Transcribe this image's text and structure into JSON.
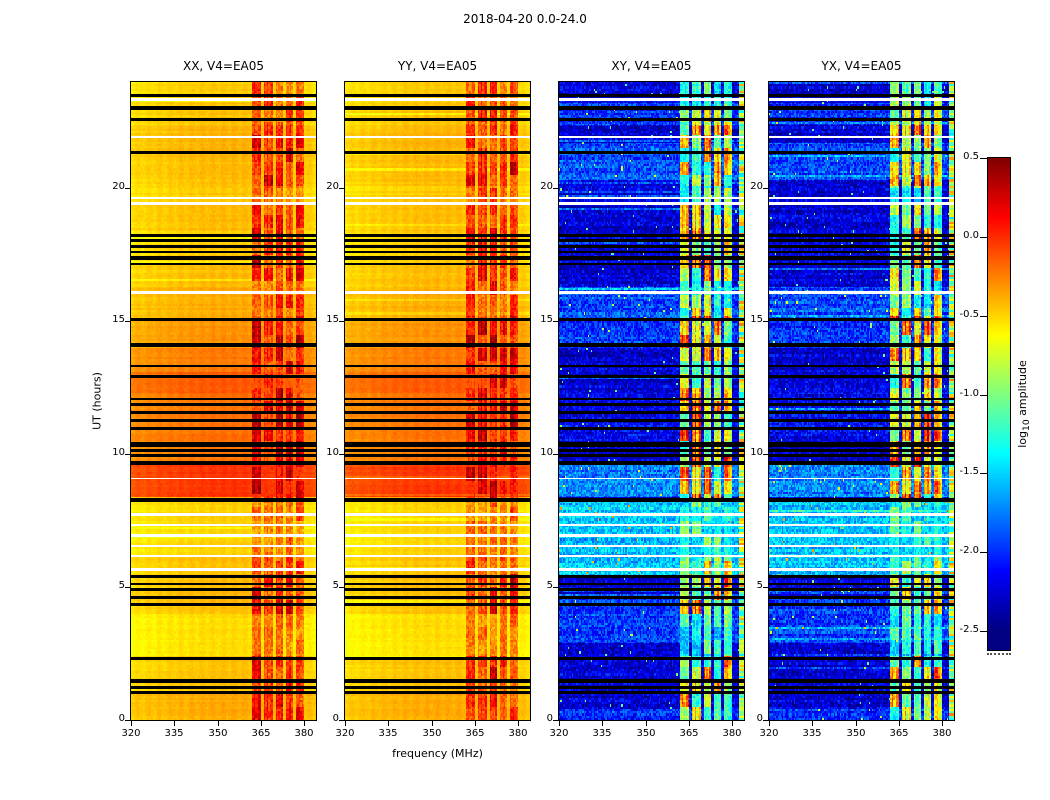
{
  "chart_data": {
    "type": "heatmap",
    "title": "2018-04-20 0.0-24.0",
    "colormap": "jet",
    "panels": [
      {
        "id": "xx",
        "title": "XX, V4=EA05",
        "kind": "auto",
        "seed": 11
      },
      {
        "id": "yy",
        "title": "YY, V4=EA05",
        "kind": "auto",
        "seed": 12
      },
      {
        "id": "xy",
        "title": "XY, V4=EA05",
        "kind": "cross",
        "seed": 23
      },
      {
        "id": "yx",
        "title": "YX, V4=EA05",
        "kind": "cross",
        "seed": 24
      }
    ],
    "x": {
      "label": "frequency (MHz)",
      "min": 320,
      "max": 384,
      "tick_values": [
        320,
        335,
        350,
        365,
        380
      ],
      "tick_labels": [
        "320",
        "335",
        "350",
        "365",
        "380"
      ]
    },
    "y": {
      "label": "UT (hours)",
      "min": 0,
      "max": 24,
      "tick_values": [
        0,
        5,
        10,
        15,
        20
      ],
      "tick_labels": [
        "0",
        "5",
        "10",
        "15",
        "20"
      ]
    },
    "colorbar": {
      "label_parts": {
        "prefix": "log",
        "sub": "10",
        "suffix": " amplitude"
      },
      "min": -2.5,
      "max": 0.5,
      "tick_values": [
        0.5,
        0.0,
        -0.5,
        -1.0,
        -1.5,
        -2.0,
        -2.5
      ],
      "tick_labels": [
        "0.5",
        "0.0",
        "-0.5",
        "-1.0",
        "-1.5",
        "-2.0",
        "-2.5"
      ]
    },
    "rfi_band_mhz": [
      361.5,
      380.5
    ],
    "rfi_blocks_mhz": [
      [
        361.8,
        365.0
      ],
      [
        366.0,
        369.0
      ],
      [
        370.0,
        372.5
      ],
      [
        373.5,
        376.0
      ],
      [
        377.0,
        379.8
      ]
    ],
    "auto_background_level": -0.62,
    "cross_background_level": -2.25,
    "flagged_rows_hours": [
      [
        0.98,
        1.08
      ],
      [
        1.18,
        1.28
      ],
      [
        1.38,
        1.55
      ],
      [
        2.25,
        2.38
      ],
      [
        4.28,
        4.4
      ],
      [
        4.55,
        4.66
      ],
      [
        4.84,
        4.96
      ],
      [
        5.06,
        5.16
      ],
      [
        5.34,
        5.44
      ],
      [
        8.2,
        8.36
      ],
      [
        9.6,
        9.76
      ],
      [
        9.9,
        10.02
      ],
      [
        10.08,
        10.18
      ],
      [
        10.28,
        10.46
      ],
      [
        10.9,
        11.02
      ],
      [
        11.2,
        11.32
      ],
      [
        11.5,
        11.62
      ],
      [
        11.8,
        11.92
      ],
      [
        12.02,
        12.12
      ],
      [
        12.85,
        12.97
      ],
      [
        13.28,
        13.37
      ],
      [
        14.05,
        14.17
      ],
      [
        15.0,
        15.12
      ],
      [
        17.1,
        17.21
      ],
      [
        17.32,
        17.44
      ],
      [
        17.55,
        17.66
      ],
      [
        17.77,
        17.88
      ],
      [
        17.97,
        18.08
      ],
      [
        18.17,
        18.3
      ],
      [
        21.3,
        21.4
      ],
      [
        22.55,
        22.63
      ],
      [
        22.95,
        23.08
      ],
      [
        23.45,
        23.53
      ]
    ],
    "gap_rows_hours": [
      [
        5.62,
        5.7
      ],
      [
        6.12,
        6.21
      ],
      [
        6.51,
        6.6
      ],
      [
        6.9,
        6.99
      ],
      [
        7.29,
        7.38
      ],
      [
        7.68,
        7.77
      ],
      [
        9.05,
        9.12
      ],
      [
        16.02,
        16.12
      ],
      [
        19.38,
        19.47
      ],
      [
        19.58,
        19.67
      ],
      [
        21.88,
        21.97
      ],
      [
        23.28,
        23.38
      ]
    ],
    "broadband_profile_auto": [
      [
        0,
        1.1,
        0.15
      ],
      [
        1.1,
        2.4,
        0.08
      ],
      [
        2.4,
        4.0,
        0.0
      ],
      [
        4.0,
        5.4,
        0.1
      ],
      [
        5.4,
        6.2,
        0.08
      ],
      [
        6.2,
        8.2,
        0.03
      ],
      [
        8.2,
        8.4,
        0.15
      ],
      [
        8.4,
        9.6,
        0.5
      ],
      [
        9.6,
        10.5,
        0.3
      ],
      [
        10.5,
        12.3,
        0.32
      ],
      [
        12.3,
        13.1,
        0.38
      ],
      [
        13.1,
        14.0,
        0.3
      ],
      [
        14.0,
        15.1,
        0.22
      ],
      [
        15.1,
        16.3,
        0.15
      ],
      [
        16.3,
        17.1,
        0.1
      ],
      [
        17.1,
        18.4,
        0.06
      ],
      [
        18.4,
        19.4,
        0.1
      ],
      [
        19.4,
        20.1,
        0.06
      ],
      [
        20.1,
        21.0,
        0.1
      ],
      [
        21.0,
        22.4,
        0.12
      ],
      [
        22.4,
        23.2,
        0.08
      ],
      [
        23.2,
        24.1,
        0.05
      ]
    ],
    "brightness_profile_cross": [
      [
        0,
        0.4,
        0.25
      ],
      [
        2.9,
        4.6,
        0.3
      ],
      [
        5.4,
        8.2,
        0.7
      ],
      [
        8.4,
        9.6,
        0.5
      ],
      [
        10.5,
        12.3,
        0.1
      ],
      [
        14.0,
        15.1,
        0.25
      ],
      [
        15.1,
        16.3,
        0.35
      ],
      [
        20.3,
        21.7,
        0.35
      ],
      [
        22.4,
        23.2,
        0.25
      ]
    ],
    "rfi_time_profile": [
      [
        0,
        1.4,
        0.85
      ],
      [
        1.4,
        2.4,
        0.9
      ],
      [
        2.4,
        4.0,
        0.45
      ],
      [
        4.0,
        5.4,
        0.95
      ],
      [
        5.4,
        6.2,
        0.75
      ],
      [
        6.2,
        8.2,
        0.5
      ],
      [
        8.2,
        9.7,
        1.0
      ],
      [
        9.7,
        12.3,
        1.0
      ],
      [
        12.3,
        14.0,
        0.9
      ],
      [
        14.0,
        15.2,
        1.0
      ],
      [
        15.2,
        16.5,
        0.7
      ],
      [
        16.5,
        18.4,
        0.9
      ],
      [
        18.4,
        19.4,
        0.8
      ],
      [
        19.4,
        20.1,
        0.55
      ],
      [
        20.1,
        22.4,
        0.9
      ],
      [
        22.4,
        23.2,
        0.7
      ],
      [
        23.2,
        24.1,
        0.65
      ]
    ]
  }
}
